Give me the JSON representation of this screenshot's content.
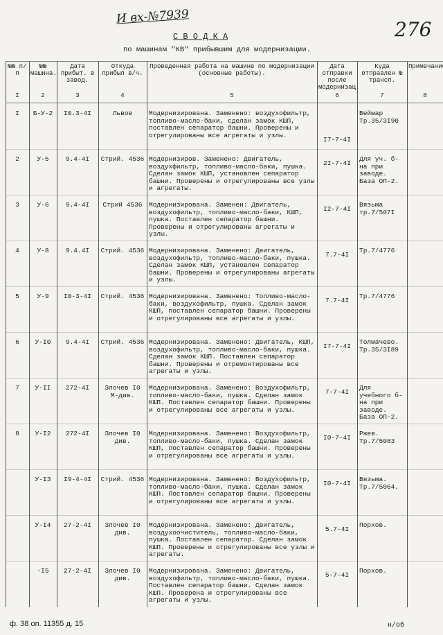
{
  "header": {
    "registry_mark": "И вх-№7939",
    "page_number": "276",
    "title": "С В О Д К А",
    "subtitle": "по машинам \"КВ\" прибывшим для модернизации."
  },
  "table": {
    "columns": [
      {
        "label": "№№ п/п",
        "number": "I"
      },
      {
        "label": "№№ машина.",
        "number": "2"
      },
      {
        "label": "Дата прибыт. в завод.",
        "number": "3"
      },
      {
        "label": "Откуда прибыл в/ч.",
        "number": "4"
      },
      {
        "label": "Проведенная работа на машине по модернизации (основные работы).",
        "number": "5"
      },
      {
        "label": "Дата отправки после модернизац.",
        "number": "6"
      },
      {
        "label": "Куда отправлен № трансп.",
        "number": "7"
      },
      {
        "label": "Примечание",
        "number": "8"
      }
    ],
    "rows": [
      {
        "number": "I",
        "machine": "Б-У-2",
        "arrived": "I0.3-4I",
        "from": "Львов",
        "work": "Модернизирована. Заменено: воздухофильтр, топливо-масло-баки, сделан замок КШП, поставлен сепаратор башни. Проверены и отрегулированы все агрегаты и узлы.",
        "shipped": "I7-7-4I",
        "destination": "Веймар Тр.35/3I90"
      },
      {
        "number": "2",
        "machine": "У-5",
        "arrived": "9.4-4I",
        "from": "Стрий. 4536",
        "work": "Модернизиров. Заменено: Двигатель, воздухфильтр, топливо-масло-баки, пушка. Сделан замок КШП, установлен сепаратор башни. Проверены и отрегулированы все узлы и агрегаты.",
        "shipped": "2I-7-4I",
        "destination": "Для уч. б-на при заводе. База ОП-2."
      },
      {
        "number": "3",
        "machine": "У-6",
        "arrived": "9.4-4I",
        "from": "Стрий 4536",
        "work": "Модернизирована. Заменен: Двигатель, воздухофильтр, топливо-масло-баки, КШП, пушка. Поставлен сепаратор башни. Проверены и отрегулированы агрегаты и узлы.",
        "shipped": "I2-7-4I",
        "destination": "Вязьма тр.7/507I"
      },
      {
        "number": "4",
        "machine": "У-8",
        "arrived": "9.4.4I",
        "from": "Стрий. 4536",
        "work": "Модернизирована. Заменено: Двигатель, воздухофильтр, топливо-масло-баки, пушка. Сделан замок КШП, установлен сепаратор башни. Проверены и отрегулированы агрегаты и узлы.",
        "shipped": "7.7-4I",
        "destination": "Тр.7/4776"
      },
      {
        "number": "5",
        "machine": "У-9",
        "arrived": "I0-3-4I",
        "from": "Стрий. 4536",
        "work": "Модернизирована. Заменено: Топливо-масло-баки, воздухофильтр, пушка. Сделан замок КШП, поставлен сепаратор башни. Проверены и отрегулированы все агрегаты и узлы.",
        "shipped": "7.7-4I",
        "destination": "Тр.7/4776"
      },
      {
        "number": "6",
        "machine": "У-I0",
        "arrived": "9.4-4I",
        "from": "Стрий. 4536",
        "work": "Модернизирована. Заменено: Двигатель, КШП, воздухофильтр, топливо-масло-баки, пушка. Сделан замок КШП. Поставлен сепаратор башни. Проверены и отремонтированы все агрегаты и узлы.",
        "shipped": "I7-7-4I",
        "destination": "Толмачево. Тр.35/3I89"
      },
      {
        "number": "7",
        "machine": "У-II",
        "arrived": "272-4I",
        "from": "Злочев I0 М-див.",
        "work": "Модернизирована. Заменено: Воздухофильтр, топливо-масло-баки, пушка. Сделан замок КШП. Поставлен сепаратор башни. Проверены и отрегулированы все агрегаты и узлы.",
        "shipped": "7-7-4I",
        "destination": "Для учебного б-на при заводе. База ОП-2."
      },
      {
        "number": "8",
        "machine": "У-I2",
        "arrived": "272-4I",
        "from": "Злочев I0 див.",
        "work": "Модернизирована. Заменено: Воздухофильтр, топливо-масло-баки, пушка. Сделан замок КШП, поставлен сепаратор башни. Проверены и отрегулированы все агрегаты и узлы.",
        "shipped": "I0-7-4I",
        "destination": "Ржев. Тр.7/5083"
      },
      {
        "machine": "У-I3",
        "arrived": "I9-4-4I",
        "from": "Стрий. 4536",
        "work": "Модернизирована. Заменено: Воздухофильтр, топливо-масло-баки, пушка. Сделан замок КШП. Поставлен сепаратор башни. Проверены и отрегулированы все агрегаты и узлы.",
        "shipped": "I0-7-4I",
        "destination": "Вязьма. Тр.7/5064."
      },
      {
        "machine": "У-I4",
        "arrived": "27-2-4I",
        "from": "Злочев I0 див.",
        "work": "Модернизирована. Заменено: Двигатель, воздухоочиститель, топливо-масло-баки, пушка. Поставлен сепаратор. Сделан замок КШП. Проверены и отрегулированы все узлы и агрегаты.",
        "shipped": "5.7-4I",
        "destination": "Порхов."
      },
      {
        "machine": "-I5",
        "arrived": "27-2-4I",
        "from": "Злочев I0 див.",
        "work": "Модернизирована. Заменено: Двигатель, воздухофильтр, топливо-масло-баки, пушка. Поставлен сепаратор башни. Сделан замок КШП. Проверена и отрегулированы все агрегаты и узлы.",
        "shipped": "5-7-4I",
        "destination": "Порхов."
      }
    ]
  },
  "footer": {
    "archive_reference": "ф. 38 оп. 11355 д. 15",
    "sheet_side": "н/об"
  }
}
